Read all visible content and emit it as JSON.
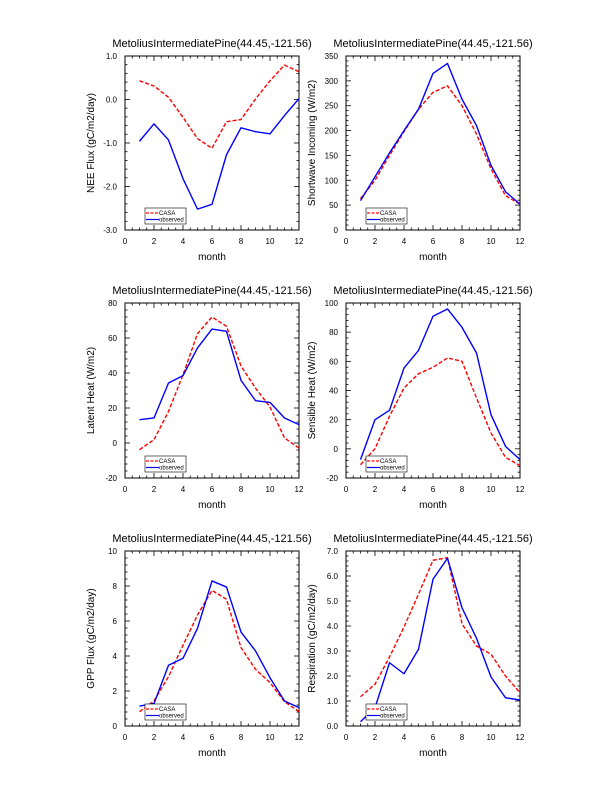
{
  "chart_data": [
    {
      "type": "line",
      "title": "MetoliusIntermediatePine(44.45,-121.56)",
      "xlabel": "month",
      "ylabel": "NEE Flux (gC/m2/day)",
      "xlim": [
        0,
        12
      ],
      "ylim": [
        -3.0,
        1.0
      ],
      "xticks": [
        0,
        2,
        4,
        6,
        8,
        10,
        12
      ],
      "xtick_labels": [
        "0",
        "2",
        "4",
        "6",
        "8",
        "10",
        "12"
      ],
      "yticks": [
        -3.0,
        -2.0,
        -1.0,
        0.0,
        1.0
      ],
      "ytick_labels": [
        "-3.0",
        "-2.0",
        "-1.0",
        "0.0",
        "1.0"
      ],
      "x": [
        1,
        2,
        3,
        4,
        5,
        6,
        7,
        8,
        9,
        10,
        11,
        12
      ],
      "legend_position": "bottom-left",
      "grid": false,
      "series": [
        {
          "name": "CASA",
          "color": "#ff0000",
          "style": "dashed",
          "values": [
            0.43,
            0.31,
            0.05,
            -0.41,
            -0.9,
            -1.12,
            -0.51,
            -0.46,
            0.01,
            0.43,
            0.79,
            0.64
          ]
        },
        {
          "name": "observed",
          "color": "#0000ff",
          "style": "solid",
          "values": [
            -0.96,
            -0.56,
            -0.93,
            -1.82,
            -2.52,
            -2.41,
            -1.27,
            -0.65,
            -0.74,
            -0.79,
            -0.37,
            0.02
          ]
        }
      ]
    },
    {
      "type": "line",
      "title": "MetoliusIntermediatePine(44.45,-121.56)",
      "xlabel": "month",
      "ylabel": "Shortwave Incoming (W/m2)",
      "xlim": [
        0,
        12
      ],
      "ylim": [
        0,
        350
      ],
      "xticks": [
        0,
        2,
        4,
        6,
        8,
        10,
        12
      ],
      "xtick_labels": [
        "0",
        "2",
        "4",
        "6",
        "8",
        "10",
        "12"
      ],
      "yticks": [
        0,
        50,
        100,
        150,
        200,
        250,
        300,
        350
      ],
      "ytick_labels": [
        "0",
        "50",
        "100",
        "150",
        "200",
        "250",
        "300",
        "350"
      ],
      "x": [
        1,
        2,
        3,
        4,
        5,
        6,
        7,
        8,
        9,
        10,
        11,
        12
      ],
      "legend_position": "bottom-left",
      "grid": false,
      "series": [
        {
          "name": "CASA",
          "color": "#ff0000",
          "style": "dashed",
          "values": [
            63,
            100,
            150,
            198,
            243,
            277,
            290,
            250,
            193,
            123,
            69,
            52
          ]
        },
        {
          "name": "observed",
          "color": "#0000ff",
          "style": "solid",
          "values": [
            59,
            107,
            155,
            200,
            243,
            315,
            335,
            263,
            210,
            130,
            77,
            52
          ]
        }
      ]
    },
    {
      "type": "line",
      "title": "MetoliusIntermediatePine(44.45,-121.56)",
      "xlabel": "month",
      "ylabel": "Latent Heat (W/m2)",
      "xlim": [
        0,
        12
      ],
      "ylim": [
        -20,
        80
      ],
      "xticks": [
        0,
        2,
        4,
        6,
        8,
        10,
        12
      ],
      "xtick_labels": [
        "0",
        "2",
        "4",
        "6",
        "8",
        "10",
        "12"
      ],
      "yticks": [
        -20,
        0,
        20,
        40,
        60,
        80
      ],
      "ytick_labels": [
        "-20",
        "0",
        "20",
        "40",
        "60",
        "80"
      ],
      "x": [
        1,
        2,
        3,
        4,
        5,
        6,
        7,
        8,
        9,
        10,
        11,
        12
      ],
      "legend_position": "bottom-left",
      "grid": false,
      "series": [
        {
          "name": "CASA",
          "color": "#ff0000",
          "style": "dashed",
          "values": [
            -3.8,
            1.9,
            18,
            39,
            62.5,
            72,
            66.7,
            44,
            31.4,
            20.6,
            2.9,
            -2.9
          ]
        },
        {
          "name": "observed",
          "color": "#0000ff",
          "style": "solid",
          "values": [
            13.3,
            14.3,
            34.3,
            38.5,
            54.3,
            65.1,
            63.8,
            35.8,
            24.2,
            23.2,
            14.3,
            10.5
          ]
        }
      ]
    },
    {
      "type": "line",
      "title": "MetoliusIntermediatePine(44.45,-121.56)",
      "xlabel": "month",
      "ylabel": "Sensible Heat (W/m2)",
      "xlim": [
        0,
        12
      ],
      "ylim": [
        -20,
        100
      ],
      "xticks": [
        0,
        2,
        4,
        6,
        8,
        10,
        12
      ],
      "xtick_labels": [
        "0",
        "2",
        "4",
        "6",
        "8",
        "10",
        "12"
      ],
      "yticks": [
        -20,
        0,
        20,
        40,
        60,
        80,
        100
      ],
      "ytick_labels": [
        "-20",
        "0",
        "20",
        "40",
        "60",
        "80",
        "100"
      ],
      "x": [
        1,
        2,
        3,
        4,
        5,
        6,
        7,
        8,
        9,
        10,
        11,
        12
      ],
      "legend_position": "bottom-left",
      "grid": false,
      "series": [
        {
          "name": "CASA",
          "color": "#ff0000",
          "style": "dashed",
          "values": [
            -10.9,
            0.1,
            22.3,
            41.7,
            51.5,
            55.9,
            62.3,
            60,
            34.9,
            10.9,
            -5.8,
            -11.5
          ]
        },
        {
          "name": "observed",
          "color": "#0000ff",
          "style": "solid",
          "values": [
            -7.4,
            20,
            26.4,
            55.4,
            67.5,
            90.9,
            95.9,
            83.3,
            65.7,
            23.4,
            1.7,
            -7.4
          ]
        }
      ]
    },
    {
      "type": "line",
      "title": "MetoliusIntermediatePine(44.45,-121.56)",
      "xlabel": "month",
      "ylabel": "GPP Flux (gC/m2/day)",
      "xlim": [
        0,
        12
      ],
      "ylim": [
        0,
        10
      ],
      "xticks": [
        0,
        2,
        4,
        6,
        8,
        10,
        12
      ],
      "xtick_labels": [
        "0",
        "2",
        "4",
        "6",
        "8",
        "10",
        "12"
      ],
      "yticks": [
        0,
        2,
        4,
        6,
        8,
        10
      ],
      "ytick_labels": [
        "0",
        "2",
        "4",
        "6",
        "8",
        "10"
      ],
      "x": [
        1,
        2,
        3,
        4,
        5,
        6,
        7,
        8,
        9,
        10,
        11,
        12
      ],
      "legend_position": "bottom-left",
      "grid": false,
      "series": [
        {
          "name": "CASA",
          "color": "#ff0000",
          "style": "dashed",
          "values": [
            0.82,
            1.43,
            2.82,
            4.61,
            6.34,
            7.75,
            7.24,
            4.48,
            3.24,
            2.48,
            1.39,
            0.82
          ]
        },
        {
          "name": "observed",
          "color": "#0000ff",
          "style": "solid",
          "values": [
            1.14,
            1.28,
            3.47,
            3.87,
            5.58,
            8.29,
            7.94,
            5.37,
            4.29,
            2.76,
            1.43,
            1.05
          ]
        }
      ]
    },
    {
      "type": "line",
      "title": "MetoliusIntermediatePine(44.45,-121.56)",
      "xlabel": "month",
      "ylabel": "Respiration (gC/m2/day)",
      "xlim": [
        0,
        12
      ],
      "ylim": [
        0.0,
        7.0
      ],
      "xticks": [
        0,
        2,
        4,
        6,
        8,
        10,
        12
      ],
      "xtick_labels": [
        "0",
        "2",
        "4",
        "6",
        "8",
        "10",
        "12"
      ],
      "yticks": [
        0.0,
        1.0,
        2.0,
        3.0,
        4.0,
        5.0,
        6.0,
        7.0
      ],
      "ytick_labels": [
        "0.0",
        "1.0",
        "2.0",
        "3.0",
        "4.0",
        "5.0",
        "6.0",
        "7.0"
      ],
      "x": [
        1,
        2,
        3,
        4,
        5,
        6,
        7,
        8,
        9,
        10,
        11,
        12
      ],
      "legend_position": "bottom-left",
      "grid": false,
      "series": [
        {
          "name": "CASA",
          "color": "#ff0000",
          "style": "dashed",
          "values": [
            1.17,
            1.67,
            2.76,
            3.96,
            5.27,
            6.63,
            6.73,
            4.09,
            3.2,
            2.87,
            2.0,
            1.33
          ]
        },
        {
          "name": "observed",
          "color": "#0000ff",
          "style": "solid",
          "values": [
            0.17,
            0.73,
            2.53,
            2.09,
            3.07,
            5.87,
            6.71,
            4.73,
            3.51,
            1.96,
            1.13,
            1.04
          ]
        }
      ]
    }
  ]
}
